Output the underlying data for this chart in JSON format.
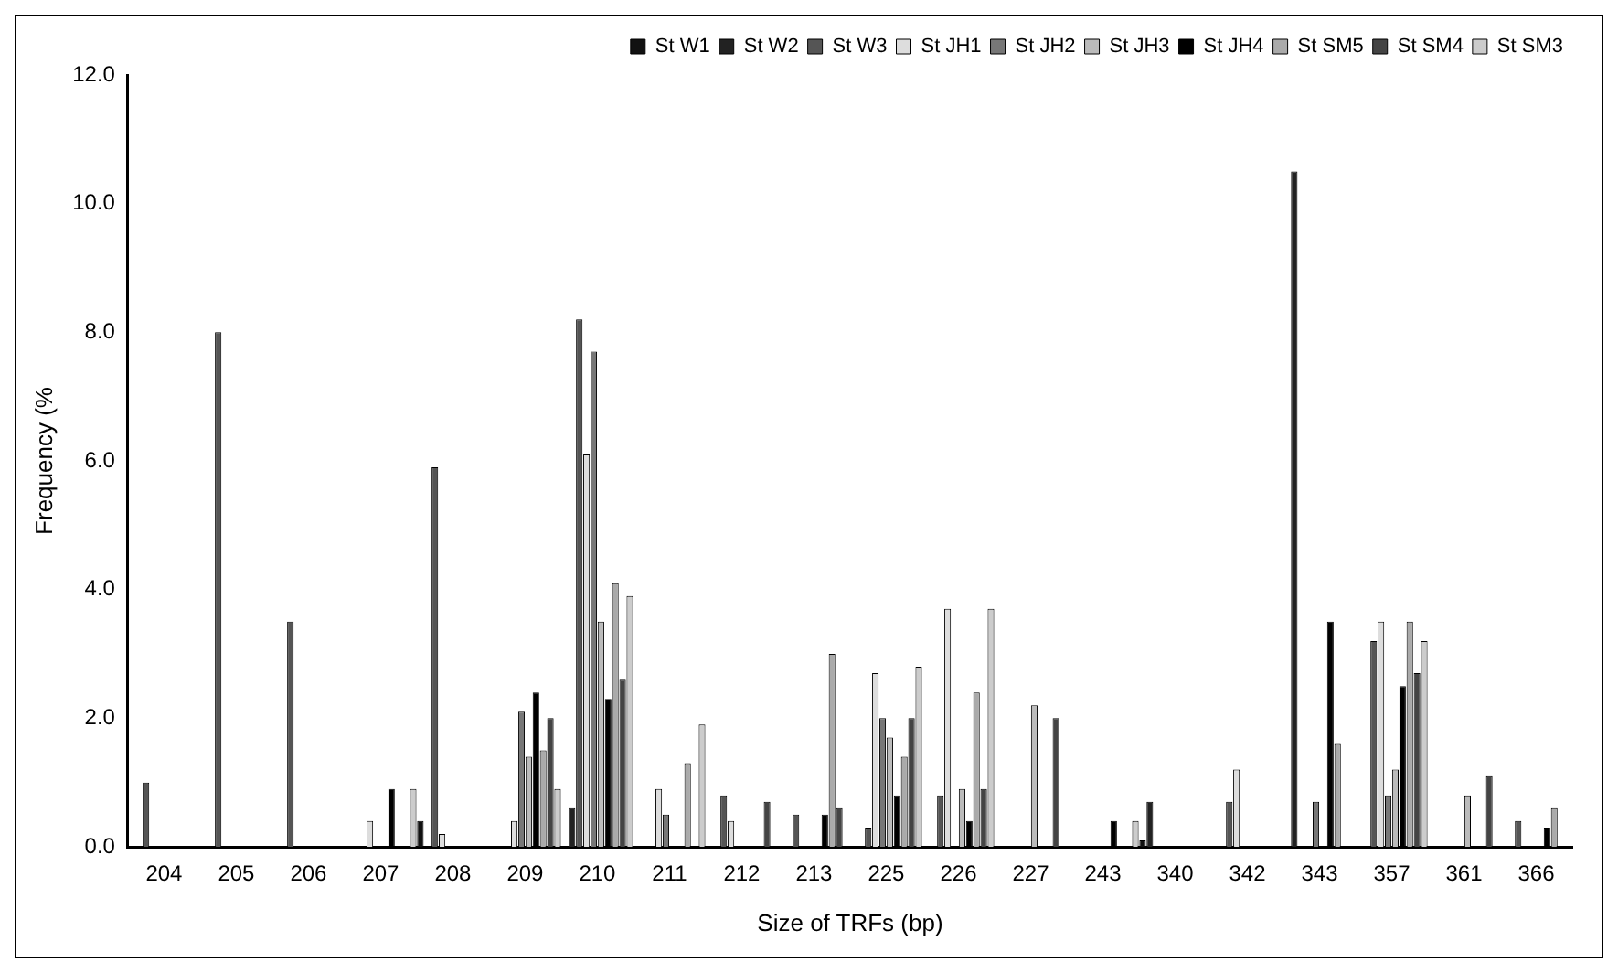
{
  "chart_data": {
    "type": "bar",
    "xlabel": "Size of TRFs (bp)",
    "ylabel": "Frequency (%",
    "categories": [
      "204",
      "205",
      "206",
      "207",
      "208",
      "209",
      "210",
      "211",
      "212",
      "213",
      "225",
      "226",
      "227",
      "243",
      "340",
      "342",
      "343",
      "357",
      "361",
      "366"
    ],
    "series": [
      {
        "name": "St W1",
        "color": "#111111",
        "values": [
          null,
          null,
          null,
          null,
          0.4,
          null,
          null,
          null,
          null,
          null,
          null,
          null,
          null,
          null,
          0.1,
          null,
          null,
          null,
          null,
          null
        ]
      },
      {
        "name": "St W2",
        "color": "#222222",
        "values": [
          null,
          null,
          null,
          null,
          null,
          null,
          0.6,
          null,
          null,
          null,
          null,
          null,
          null,
          null,
          0.7,
          null,
          10.5,
          null,
          null,
          null
        ]
      },
      {
        "name": "St W3",
        "color": "#555555",
        "values": [
          1.0,
          8.0,
          3.5,
          null,
          5.9,
          null,
          8.2,
          null,
          0.8,
          0.5,
          0.3,
          0.8,
          null,
          null,
          null,
          0.7,
          null,
          3.2,
          null,
          0.4
        ]
      },
      {
        "name": "St JH1",
        "color": "#dddddd",
        "values": [
          null,
          null,
          null,
          0.4,
          0.2,
          0.4,
          6.1,
          0.9,
          0.4,
          null,
          2.7,
          3.7,
          null,
          null,
          null,
          1.2,
          null,
          3.5,
          null,
          null
        ]
      },
      {
        "name": "St JH2",
        "color": "#777777",
        "values": [
          null,
          null,
          null,
          null,
          null,
          2.1,
          7.7,
          0.5,
          null,
          null,
          2.0,
          null,
          null,
          null,
          null,
          null,
          0.7,
          0.8,
          null,
          null
        ]
      },
      {
        "name": "St JH3",
        "color": "#bbbbbb",
        "values": [
          null,
          null,
          null,
          null,
          null,
          1.4,
          3.5,
          null,
          null,
          null,
          1.7,
          0.9,
          2.2,
          null,
          null,
          null,
          null,
          1.2,
          0.8,
          null
        ]
      },
      {
        "name": "St JH4",
        "color": "#000000",
        "values": [
          null,
          null,
          null,
          0.9,
          null,
          2.4,
          2.3,
          null,
          null,
          0.5,
          0.8,
          0.4,
          null,
          0.4,
          null,
          null,
          3.5,
          2.5,
          null,
          0.3
        ]
      },
      {
        "name": "St SM5",
        "color": "#aaaaaa",
        "values": [
          null,
          null,
          null,
          null,
          null,
          1.5,
          4.1,
          1.3,
          null,
          3.0,
          1.4,
          2.4,
          null,
          null,
          null,
          null,
          1.6,
          3.5,
          null,
          0.6
        ]
      },
      {
        "name": "St SM4",
        "color": "#444444",
        "values": [
          null,
          null,
          null,
          null,
          null,
          2.0,
          2.6,
          null,
          0.7,
          0.6,
          2.0,
          0.9,
          2.0,
          null,
          null,
          null,
          null,
          2.7,
          1.1,
          null
        ]
      },
      {
        "name": "St SM3",
        "color": "#cccccc",
        "values": [
          null,
          null,
          null,
          0.9,
          null,
          0.9,
          3.9,
          1.9,
          null,
          null,
          2.8,
          3.7,
          null,
          0.4,
          null,
          null,
          null,
          3.2,
          null,
          null
        ]
      }
    ],
    "ylim": [
      0,
      12
    ],
    "yticks": [
      {
        "value": 0,
        "label": "0.0"
      },
      {
        "value": 2,
        "label": "2.0"
      },
      {
        "value": 4,
        "label": "4.0"
      },
      {
        "value": 6,
        "label": "6.0"
      },
      {
        "value": 8,
        "label": "8.0"
      },
      {
        "value": 10,
        "label": "10.0"
      },
      {
        "value": 12,
        "label": "12.0"
      }
    ],
    "legend": "top right"
  }
}
